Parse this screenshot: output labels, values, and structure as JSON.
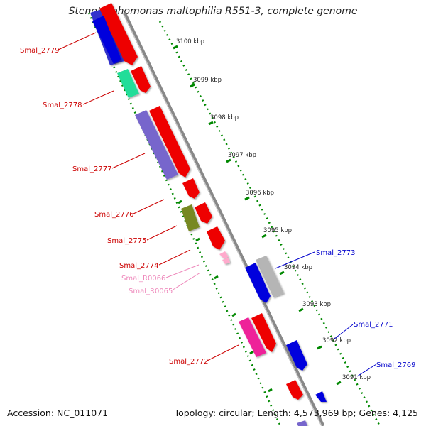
{
  "title": "Stenotrophomonas maltophilia R551-3, complete genome",
  "footer": {
    "accession": "Accession: NC_011071",
    "topology": "Topology: circular; Length: 4,573,969 bp; Genes: 4,125"
  },
  "ruler_labels": [
    "3100 kbp",
    "3099 kbp",
    "3098 kbp",
    "3097 kbp",
    "3096 kbp",
    "3095 kbp",
    "3094 kbp",
    "3093 kbp",
    "3092 kbp",
    "3091 kbp"
  ],
  "gene_labels": [
    {
      "text": "Smal_2779",
      "color": "#cc0000"
    },
    {
      "text": "Smal_2778",
      "color": "#cc0000"
    },
    {
      "text": "Smal_2777",
      "color": "#cc0000"
    },
    {
      "text": "Smal_2776",
      "color": "#cc0000"
    },
    {
      "text": "Smal_2775",
      "color": "#cc0000"
    },
    {
      "text": "Smal_2774",
      "color": "#cc0000"
    },
    {
      "text": "Smal_R0066",
      "color": "#ee88bb"
    },
    {
      "text": "Smal_R0065",
      "color": "#ee88bb"
    },
    {
      "text": "Smal_2773",
      "color": "#0000cc"
    },
    {
      "text": "Smal_2772",
      "color": "#cc0000"
    },
    {
      "text": "Smal_2771",
      "color": "#0000cc"
    },
    {
      "text": "Smal_2769",
      "color": "#0000cc"
    }
  ],
  "colors": {
    "forward_cds": "#ee0000",
    "reverse_cds": "#0000dd",
    "cog_blue": "#7766cc",
    "cog_teal": "#22dd99",
    "cog_olive": "#778822",
    "cog_pink": "#ee2299",
    "cog_gray": "#b5b5b5",
    "rna": "#ffaacc",
    "backbone": "#888888",
    "ruler": "#008800"
  }
}
